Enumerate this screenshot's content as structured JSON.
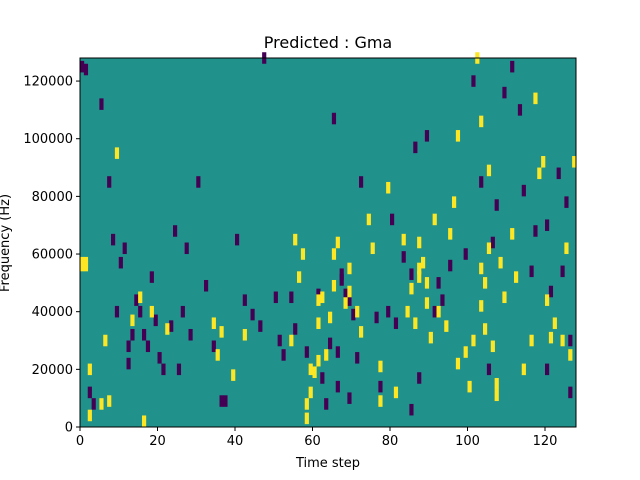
{
  "chart_data": {
    "type": "heatmap",
    "title": "Predicted : Gma",
    "xlabel": "Time step",
    "ylabel": "Frequency (Hz)",
    "xlim": [
      0,
      128
    ],
    "ylim": [
      0,
      128000
    ],
    "x_ticks": [
      0,
      20,
      40,
      60,
      80,
      100,
      120
    ],
    "x_tick_labels": [
      "0",
      "20",
      "40",
      "60",
      "80",
      "100",
      "120"
    ],
    "y_ticks": [
      0,
      20000,
      40000,
      60000,
      80000,
      100000,
      120000
    ],
    "y_tick_labels": [
      "0",
      "20000",
      "40000",
      "60000",
      "80000",
      "100000",
      "120000"
    ],
    "grid": false,
    "legend": "none",
    "n_time_steps": 128,
    "n_freq_bins": 128,
    "background_value": 0,
    "colors": {
      "background": "#21918c",
      "low": "#440154",
      "high": "#fde725"
    },
    "high_cells": [
      [
        1,
        57
      ],
      [
        1,
        56
      ],
      [
        2,
        57
      ],
      [
        2,
        56
      ],
      [
        3,
        20
      ],
      [
        3,
        4
      ],
      [
        6,
        8
      ],
      [
        7,
        30
      ],
      [
        8,
        9
      ],
      [
        10,
        95
      ],
      [
        14,
        37
      ],
      [
        17,
        2
      ],
      [
        19,
        40
      ],
      [
        16,
        45
      ],
      [
        23,
        34
      ],
      [
        35,
        36
      ],
      [
        37,
        33
      ],
      [
        36,
        25
      ],
      [
        40,
        18
      ],
      [
        43,
        32
      ],
      [
        55,
        30
      ],
      [
        56,
        65
      ],
      [
        57,
        52
      ],
      [
        58,
        60
      ],
      [
        59,
        3
      ],
      [
        59,
        8
      ],
      [
        60,
        12
      ],
      [
        60,
        20
      ],
      [
        61,
        19
      ],
      [
        62,
        23
      ],
      [
        62,
        36
      ],
      [
        62,
        44
      ],
      [
        63,
        45
      ],
      [
        64,
        25
      ],
      [
        65,
        38
      ],
      [
        66,
        49
      ],
      [
        66,
        60
      ],
      [
        67,
        64
      ],
      [
        69,
        43
      ],
      [
        70,
        47
      ],
      [
        70,
        55
      ],
      [
        72,
        40
      ],
      [
        73,
        33
      ],
      [
        75,
        72
      ],
      [
        76,
        62
      ],
      [
        78,
        21
      ],
      [
        78,
        9
      ],
      [
        80,
        83
      ],
      [
        82,
        12
      ],
      [
        84,
        65
      ],
      [
        85,
        40
      ],
      [
        86,
        48
      ],
      [
        87,
        36
      ],
      [
        88,
        52
      ],
      [
        88,
        55
      ],
      [
        88,
        64
      ],
      [
        89,
        57
      ],
      [
        90,
        50
      ],
      [
        90,
        43
      ],
      [
        91,
        31
      ],
      [
        92,
        72
      ],
      [
        93,
        40
      ],
      [
        95,
        35
      ],
      [
        96,
        67
      ],
      [
        97,
        78
      ],
      [
        98,
        101
      ],
      [
        98,
        22
      ],
      [
        100,
        26
      ],
      [
        101,
        14
      ],
      [
        102,
        30
      ],
      [
        103,
        128
      ],
      [
        104,
        106
      ],
      [
        104,
        42
      ],
      [
        104,
        55
      ],
      [
        105,
        34
      ],
      [
        105,
        50
      ],
      [
        106,
        89
      ],
      [
        106,
        62
      ],
      [
        107,
        28
      ],
      [
        108,
        11
      ],
      [
        108,
        15
      ],
      [
        109,
        57
      ],
      [
        110,
        45
      ],
      [
        112,
        67
      ],
      [
        113,
        52
      ],
      [
        115,
        20
      ],
      [
        117,
        30
      ],
      [
        118,
        114
      ],
      [
        119,
        88
      ],
      [
        120,
        92
      ],
      [
        121,
        44
      ],
      [
        122,
        31
      ],
      [
        123,
        36
      ],
      [
        125,
        30
      ],
      [
        126,
        62
      ],
      [
        127,
        25
      ],
      [
        128,
        92
      ]
    ],
    "low_cells": [
      [
        1,
        125
      ],
      [
        2,
        124
      ],
      [
        3,
        12
      ],
      [
        4,
        8
      ],
      [
        6,
        112
      ],
      [
        8,
        85
      ],
      [
        9,
        65
      ],
      [
        10,
        40
      ],
      [
        11,
        57
      ],
      [
        12,
        62
      ],
      [
        13,
        28
      ],
      [
        13,
        22
      ],
      [
        14,
        32
      ],
      [
        15,
        44
      ],
      [
        16,
        40
      ],
      [
        17,
        32
      ],
      [
        18,
        28
      ],
      [
        19,
        52
      ],
      [
        20,
        37
      ],
      [
        21,
        24
      ],
      [
        22,
        20
      ],
      [
        24,
        35
      ],
      [
        25,
        68
      ],
      [
        26,
        20
      ],
      [
        27,
        40
      ],
      [
        28,
        62
      ],
      [
        29,
        32
      ],
      [
        31,
        85
      ],
      [
        33,
        49
      ],
      [
        35,
        28
      ],
      [
        37,
        9
      ],
      [
        38,
        9
      ],
      [
        41,
        65
      ],
      [
        43,
        44
      ],
      [
        45,
        39
      ],
      [
        47,
        35
      ],
      [
        48,
        128
      ],
      [
        51,
        45
      ],
      [
        52,
        30
      ],
      [
        53,
        25
      ],
      [
        55,
        45
      ],
      [
        56,
        34
      ],
      [
        59,
        26
      ],
      [
        62,
        46
      ],
      [
        63,
        17
      ],
      [
        64,
        8
      ],
      [
        65,
        29
      ],
      [
        66,
        107
      ],
      [
        67,
        26
      ],
      [
        67,
        14
      ],
      [
        68,
        53
      ],
      [
        68,
        51
      ],
      [
        69,
        46
      ],
      [
        70,
        10
      ],
      [
        70,
        44
      ],
      [
        71,
        39
      ],
      [
        72,
        24
      ],
      [
        73,
        85
      ],
      [
        77,
        38
      ],
      [
        78,
        14
      ],
      [
        80,
        40
      ],
      [
        81,
        72
      ],
      [
        82,
        36
      ],
      [
        84,
        59
      ],
      [
        86,
        6
      ],
      [
        86,
        53
      ],
      [
        87,
        97
      ],
      [
        88,
        17
      ],
      [
        90,
        101
      ],
      [
        92,
        40
      ],
      [
        93,
        50
      ],
      [
        94,
        44
      ],
      [
        96,
        56
      ],
      [
        100,
        60
      ],
      [
        102,
        120
      ],
      [
        104,
        85
      ],
      [
        106,
        20
      ],
      [
        107,
        64
      ],
      [
        108,
        77
      ],
      [
        110,
        116
      ],
      [
        112,
        125
      ],
      [
        114,
        110
      ],
      [
        115,
        82
      ],
      [
        117,
        54
      ],
      [
        118,
        68
      ],
      [
        121,
        20
      ],
      [
        121,
        70
      ],
      [
        122,
        47
      ],
      [
        124,
        88
      ],
      [
        125,
        54
      ],
      [
        126,
        78
      ],
      [
        127,
        30
      ],
      [
        127,
        12
      ]
    ]
  }
}
